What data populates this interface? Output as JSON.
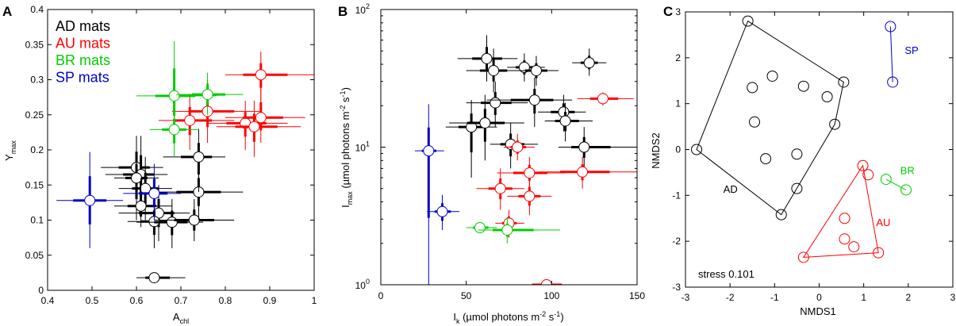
{
  "figure": {
    "panels": [
      "A",
      "B",
      "C"
    ]
  },
  "chart_data": [
    {
      "id": "A",
      "type": "scatter",
      "title": "",
      "xlabel_main": "A",
      "xlabel_sub": "chl",
      "ylabel_main": "Y",
      "ylabel_sub": "max",
      "xlim": [
        0.4,
        1.0
      ],
      "ylim": [
        0,
        0.4
      ],
      "xticks": [
        "0.4",
        "0.5",
        "0.6",
        "0.7",
        "0.8",
        "0.9",
        "1"
      ],
      "yticks": [
        "0",
        "0.05",
        "0.1",
        "0.15",
        "0.2",
        "0.25",
        "0.3",
        "0.35",
        "0.4"
      ],
      "legend": [
        {
          "label": "AD mats",
          "color": "#000000"
        },
        {
          "label": "AU mats",
          "color": "#ff0000"
        },
        {
          "label": "BR mats",
          "color": "#00cc00"
        },
        {
          "label": "SP mats",
          "color": "#0000cc"
        }
      ],
      "series": [
        {
          "name": "AD mats",
          "color": "#000000",
          "points": [
            {
              "x": 0.64,
              "y": 0.018,
              "ex": [
                0.6,
                0.71
              ],
              "ey": [
                0.016,
                0.02
              ]
            },
            {
              "x": 0.6,
              "y": 0.175,
              "ex": [
                0.52,
                0.66
              ],
              "ey": [
                0.12,
                0.22
              ]
            },
            {
              "x": 0.61,
              "y": 0.165,
              "ex": [
                0.53,
                0.67
              ],
              "ey": [
                0.11,
                0.22
              ]
            },
            {
              "x": 0.6,
              "y": 0.16,
              "ex": [
                0.55,
                0.65
              ],
              "ey": [
                0.1,
                0.2
              ]
            },
            {
              "x": 0.62,
              "y": 0.145,
              "ex": [
                0.56,
                0.68
              ],
              "ey": [
                0.1,
                0.19
              ]
            },
            {
              "x": 0.61,
              "y": 0.12,
              "ex": [
                0.55,
                0.68
              ],
              "ey": [
                0.09,
                0.16
              ]
            },
            {
              "x": 0.65,
              "y": 0.11,
              "ex": [
                0.56,
                0.72
              ],
              "ey": [
                0.07,
                0.15
              ]
            },
            {
              "x": 0.64,
              "y": 0.098,
              "ex": [
                0.58,
                0.7
              ],
              "ey": [
                0.06,
                0.13
              ]
            },
            {
              "x": 0.68,
              "y": 0.097,
              "ex": [
                0.6,
                0.75
              ],
              "ey": [
                0.06,
                0.13
              ]
            },
            {
              "x": 0.73,
              "y": 0.1,
              "ex": [
                0.64,
                0.82
              ],
              "ey": [
                0.07,
                0.13
              ]
            },
            {
              "x": 0.74,
              "y": 0.14,
              "ex": [
                0.64,
                0.84
              ],
              "ey": [
                0.1,
                0.18
              ]
            },
            {
              "x": 0.74,
              "y": 0.19,
              "ex": [
                0.66,
                0.8
              ],
              "ey": [
                0.14,
                0.23
              ]
            }
          ]
        },
        {
          "name": "AU mats",
          "color": "#ff0000",
          "points": [
            {
              "x": 0.88,
              "y": 0.307,
              "ex": [
                0.8,
                1.0
              ],
              "ey": [
                0.27,
                0.34
              ]
            },
            {
              "x": 0.76,
              "y": 0.255,
              "ex": [
                0.68,
                0.88
              ],
              "ey": [
                0.21,
                0.3
              ]
            },
            {
              "x": 0.72,
              "y": 0.242,
              "ex": [
                0.65,
                0.82
              ],
              "ey": [
                0.2,
                0.28
              ]
            },
            {
              "x": 0.845,
              "y": 0.238,
              "ex": [
                0.76,
                0.94
              ],
              "ey": [
                0.2,
                0.27
              ]
            },
            {
              "x": 0.88,
              "y": 0.246,
              "ex": [
                0.8,
                0.98
              ],
              "ey": [
                0.21,
                0.29
              ]
            },
            {
              "x": 0.865,
              "y": 0.233,
              "ex": [
                0.78,
                0.97
              ],
              "ey": [
                0.19,
                0.27
              ]
            }
          ]
        },
        {
          "name": "BR mats",
          "color": "#00cc00",
          "points": [
            {
              "x": 0.685,
              "y": 0.277,
              "ex": [
                0.6,
                0.78
              ],
              "ey": [
                0.22,
                0.355
              ]
            },
            {
              "x": 0.76,
              "y": 0.279,
              "ex": [
                0.69,
                0.84
              ],
              "ey": [
                0.25,
                0.31
              ]
            },
            {
              "x": 0.685,
              "y": 0.229,
              "ex": [
                0.63,
                0.74
              ],
              "ey": [
                0.19,
                0.26
              ]
            }
          ]
        },
        {
          "name": "SP mats",
          "color": "#0000cc",
          "points": [
            {
              "x": 0.495,
              "y": 0.128,
              "ex": [
                0.42,
                0.57
              ],
              "ey": [
                0.06,
                0.197
              ]
            },
            {
              "x": 0.64,
              "y": 0.138,
              "ex": [
                0.57,
                0.7
              ],
              "ey": [
                0.1,
                0.18
              ]
            }
          ]
        }
      ]
    },
    {
      "id": "B",
      "type": "scatter",
      "title": "",
      "xlabel_main": "I",
      "xlabel_sub": "k",
      "xlabel_rest": " (µmol photons m",
      "xlabel_sup": "-2",
      "xlabel_end": " s",
      "xlabel_sup2": "-1",
      "xlabel_close": ")",
      "ylabel_main": "I",
      "ylabel_sub": "max",
      "ylabel_rest": " (µmol photons m",
      "ylabel_sup": "-2",
      "ylabel_end": " s",
      "ylabel_sup2": "-1",
      "ylabel_close": ")",
      "xlim": [
        0,
        150
      ],
      "ylim": [
        1,
        100
      ],
      "yscale": "log",
      "xticks": [
        "0",
        "50",
        "100",
        "150"
      ],
      "yticks": [
        {
          "base": "10",
          "exp": "0"
        },
        {
          "base": "10",
          "exp": "1"
        },
        {
          "base": "10",
          "exp": "2"
        }
      ],
      "series": [
        {
          "name": "AD",
          "color": "#000000",
          "points": [
            {
              "x": 62,
              "y": 44,
              "ex": [
                45,
                80
              ],
              "ey": [
                30,
                65
              ]
            },
            {
              "x": 66,
              "y": 36,
              "ex": [
                50,
                82
              ],
              "ey": [
                25,
                52
              ]
            },
            {
              "x": 84,
              "y": 38,
              "ex": [
                74,
                96
              ],
              "ey": [
                30,
                48
              ]
            },
            {
              "x": 91,
              "y": 36,
              "ex": [
                78,
                104
              ],
              "ey": [
                28,
                46
              ]
            },
            {
              "x": 122,
              "y": 41,
              "ex": [
                112,
                132
              ],
              "ey": [
                33,
                52
              ]
            },
            {
              "x": 67,
              "y": 21,
              "ex": [
                50,
                86
              ],
              "ey": [
                14,
                30
              ]
            },
            {
              "x": 90,
              "y": 22,
              "ex": [
                62,
                112
              ],
              "ey": [
                14,
                32
              ]
            },
            {
              "x": 107,
              "y": 18,
              "ex": [
                92,
                120
              ],
              "ey": [
                13,
                24
              ]
            },
            {
              "x": 108,
              "y": 15.5,
              "ex": [
                96,
                124
              ],
              "ey": [
                11,
                21
              ]
            },
            {
              "x": 53,
              "y": 14,
              "ex": [
                38,
                68
              ],
              "ey": [
                6,
                22
              ]
            },
            {
              "x": 61,
              "y": 15,
              "ex": [
                40,
                84
              ],
              "ey": [
                8,
                24
              ]
            },
            {
              "x": 76,
              "y": 10.5,
              "ex": [
                64,
                92
              ],
              "ey": [
                7,
                15
              ]
            },
            {
              "x": 119,
              "y": 10,
              "ex": [
                104,
                150
              ],
              "ey": [
                7,
                14
              ]
            }
          ]
        },
        {
          "name": "AU",
          "color": "#ff0000",
          "points": [
            {
              "x": 130,
              "y": 22.5,
              "ex": [
                115,
                148
              ],
              "ey": [
                20,
                25
              ]
            },
            {
              "x": 80,
              "y": 10,
              "ex": [
                72,
                90
              ],
              "ey": [
                8,
                12.5
              ]
            },
            {
              "x": 87,
              "y": 6.5,
              "ex": [
                68,
                108
              ],
              "ey": [
                5,
                8.5
              ]
            },
            {
              "x": 118,
              "y": 6.6,
              "ex": [
                92,
                150
              ],
              "ey": [
                5,
                8.5
              ]
            },
            {
              "x": 70,
              "y": 5,
              "ex": [
                56,
                84
              ],
              "ey": [
                3.5,
                7
              ]
            },
            {
              "x": 87,
              "y": 4.4,
              "ex": [
                74,
                100
              ],
              "ey": [
                3.2,
                6
              ]
            },
            {
              "x": 75,
              "y": 2.8,
              "ex": [
                67,
                84
              ],
              "ey": [
                2.2,
                3.5
              ]
            },
            {
              "x": 97,
              "y": 1.0,
              "ex": [
                80,
                115
              ],
              "ey": [
                0.94,
                1.08
              ]
            }
          ]
        },
        {
          "name": "BR",
          "color": "#00cc00",
          "points": [
            {
              "x": 58,
              "y": 2.6,
              "ex": [
                50,
                68
              ],
              "ey": [
                2.4,
                2.8
              ]
            },
            {
              "x": 74,
              "y": 2.5,
              "ex": [
                57,
                105
              ],
              "ey": [
                2.0,
                3.1
              ]
            }
          ]
        },
        {
          "name": "SP",
          "color": "#0000cc",
          "points": [
            {
              "x": 28,
              "y": 9.4,
              "ex": [
                20,
                37
              ],
              "ey": [
                1.0,
                20.5
              ]
            },
            {
              "x": 36,
              "y": 3.4,
              "ex": [
                27,
                46
              ],
              "ey": [
                2.5,
                4.5
              ]
            }
          ]
        }
      ]
    },
    {
      "id": "C",
      "type": "scatter",
      "title": "",
      "xlabel": "NMDS1",
      "ylabel": "NMDS2",
      "xlim": [
        -3,
        3
      ],
      "ylim": [
        -3,
        3
      ],
      "xticks": [
        "-3",
        "-2",
        "-1",
        "0",
        "1",
        "2",
        "3"
      ],
      "yticks": [
        "-3",
        "-2",
        "-1",
        "0",
        "1",
        "2",
        "3"
      ],
      "annotation": "stress 0.101",
      "groups": [
        {
          "name": "AD",
          "color": "#000000",
          "label_pos": [
            -2.15,
            -0.87
          ],
          "hull": [
            [
              -1.6,
              2.8
            ],
            [
              0.55,
              1.47
            ],
            [
              0.35,
              0.55
            ],
            [
              -0.85,
              -1.42
            ],
            [
              -2.75,
              0.0
            ]
          ],
          "points": [
            [
              -1.6,
              2.8
            ],
            [
              0.55,
              1.47
            ],
            [
              0.35,
              0.55
            ],
            [
              -0.85,
              -1.42
            ],
            [
              -2.75,
              0.0
            ],
            [
              -1.5,
              1.35
            ],
            [
              -1.05,
              1.6
            ],
            [
              -0.35,
              1.38
            ],
            [
              0.18,
              1.15
            ],
            [
              -1.45,
              0.6
            ],
            [
              -1.2,
              -0.2
            ],
            [
              -0.5,
              -0.1
            ],
            [
              -0.5,
              -0.85
            ]
          ]
        },
        {
          "name": "AU",
          "color": "#ff0000",
          "label_pos": [
            1.28,
            -1.6
          ],
          "hull": [
            [
              0.98,
              -0.35
            ],
            [
              1.33,
              -2.25
            ],
            [
              -0.35,
              -2.35
            ]
          ],
          "points": [
            [
              0.98,
              -0.35
            ],
            [
              1.1,
              -0.55
            ],
            [
              0.57,
              -1.5
            ],
            [
              0.57,
              -1.95
            ],
            [
              0.78,
              -2.12
            ],
            [
              1.33,
              -2.25
            ],
            [
              -0.35,
              -2.35
            ]
          ]
        },
        {
          "name": "BR",
          "color": "#00cc00",
          "label_pos": [
            1.82,
            -0.47
          ],
          "hull": [
            [
              1.5,
              -0.65
            ],
            [
              1.95,
              -0.88
            ]
          ],
          "points": [
            [
              1.5,
              -0.65
            ],
            [
              1.95,
              -0.88
            ]
          ]
        },
        {
          "name": "SP",
          "color": "#0000cc",
          "label_pos": [
            1.92,
            2.15
          ],
          "hull": [
            [
              1.6,
              2.68
            ],
            [
              1.65,
              1.47
            ]
          ],
          "points": [
            [
              1.6,
              2.68
            ],
            [
              1.65,
              1.47
            ]
          ]
        }
      ]
    }
  ]
}
